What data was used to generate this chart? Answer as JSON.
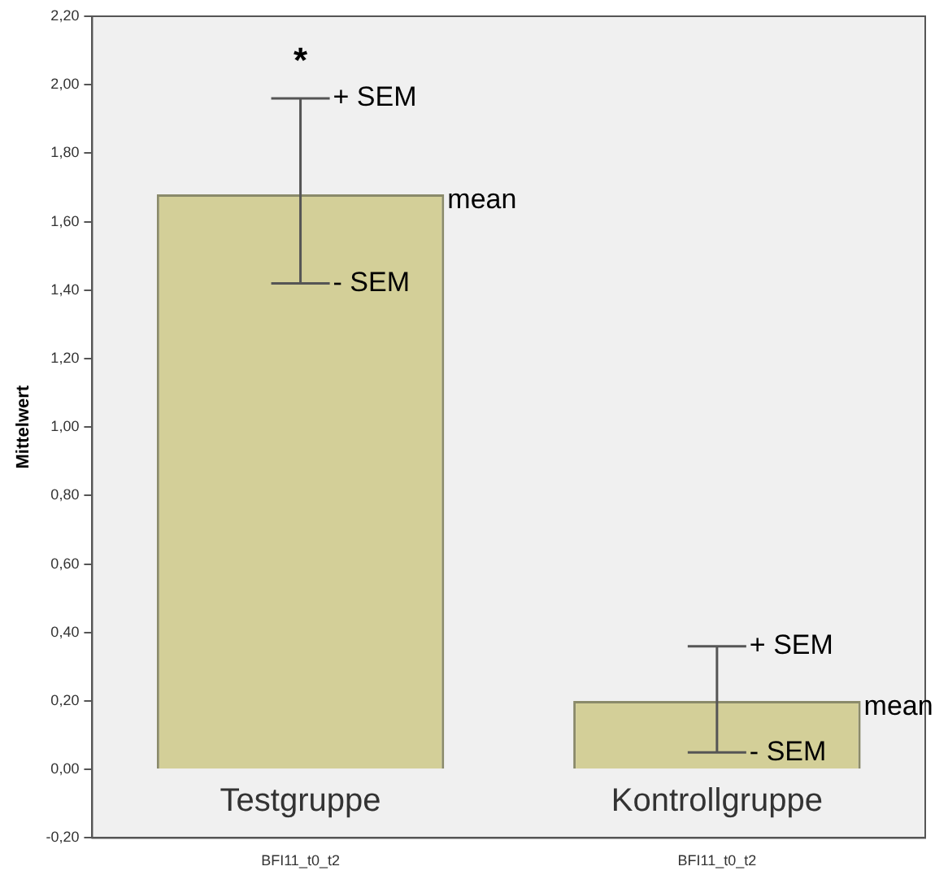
{
  "chart_data": {
    "type": "bar",
    "ylabel": "Mittelwert",
    "categories": [
      "BFI11_t0_t2",
      "BFI11_t0_t2"
    ],
    "values": [
      1.68,
      0.2
    ],
    "color": "#d3cf98",
    "errors": [
      [
        1.42,
        1.96
      ],
      [
        0.05,
        0.36
      ]
    ],
    "ylim": [
      -0.2,
      2.2
    ],
    "yticks": [
      {
        "value": -0.2,
        "label": "-0,20"
      },
      {
        "value": 0,
        "label": "0,00"
      },
      {
        "value": 0.2,
        "label": "0,20"
      },
      {
        "value": 0.4,
        "label": "0,40"
      },
      {
        "value": 0.6,
        "label": "0,60"
      },
      {
        "value": 0.8,
        "label": "0,80"
      },
      {
        "value": 1.0,
        "label": "1,00"
      },
      {
        "value": 1.2,
        "label": "1,20"
      },
      {
        "value": 1.4,
        "label": "1,40"
      },
      {
        "value": 1.6,
        "label": "1,60"
      },
      {
        "value": 1.8,
        "label": "1,80"
      },
      {
        "value": 2.0,
        "label": "2,00"
      },
      {
        "value": 2.2,
        "label": "2,20"
      }
    ],
    "annotations": [
      "*",
      "+ SEM",
      "mean",
      "- SEM",
      "+ SEM",
      "mean",
      "- SEM",
      "Testgruppe",
      "Kontrollgruppe"
    ],
    "grid": false,
    "legend": false
  }
}
